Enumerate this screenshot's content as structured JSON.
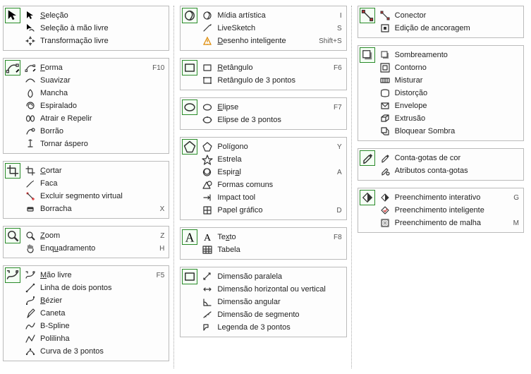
{
  "ui": {
    "colors": {
      "group_border": "#bbbbbb",
      "main_icon_border": "#2a8a2a",
      "main_icon_bg": "#f4fff4",
      "text": "#222222",
      "shortcut": "#555555",
      "divider": "#aaaaaa",
      "background": "#ffffff"
    },
    "font_size_pt": 8,
    "layout": "three-columns-dotted-dividers"
  },
  "columns": [
    {
      "groups": [
        {
          "main": "pick",
          "items": [
            {
              "icon": "pick",
              "label": "Seleção",
              "u": 0
            },
            {
              "icon": "freehand-pick",
              "label": "Seleção à mão livre"
            },
            {
              "icon": "free-transform",
              "label": "Transformação livre"
            }
          ]
        },
        {
          "main": "shape-tool",
          "items": [
            {
              "icon": "shape-tool",
              "label": "Forma",
              "u": 0,
              "shortcut": "F10"
            },
            {
              "icon": "smooth",
              "label": "Suavizar"
            },
            {
              "icon": "smudge",
              "label": "Mancha"
            },
            {
              "icon": "twirl",
              "label": "Espiralado"
            },
            {
              "icon": "attract",
              "label": "Atrair e Repelir"
            },
            {
              "icon": "smear",
              "label": "Borrão"
            },
            {
              "icon": "roughen",
              "label": "Tornar áspero"
            }
          ]
        },
        {
          "main": "crop",
          "items": [
            {
              "icon": "crop",
              "label": "Cortar",
              "u": 0
            },
            {
              "icon": "knife",
              "label": "Faca"
            },
            {
              "icon": "vseg",
              "label": "Excluir segmento virtual"
            },
            {
              "icon": "eraser",
              "label": "Borracha",
              "shortcut": "X"
            }
          ]
        },
        {
          "main": "zoom",
          "items": [
            {
              "icon": "zoom",
              "label": "Zoom",
              "u": 0,
              "shortcut": "Z"
            },
            {
              "icon": "pan",
              "label": "Enquadramento",
              "u": 3,
              "shortcut": "H"
            }
          ]
        },
        {
          "main": "freehand",
          "items": [
            {
              "icon": "freehand",
              "label": "Mão livre",
              "u": 0,
              "shortcut": "F5"
            },
            {
              "icon": "2ptline",
              "label": "Linha de dois pontos"
            },
            {
              "icon": "bezier",
              "label": "Bézier",
              "u": 0
            },
            {
              "icon": "pen",
              "label": "Caneta"
            },
            {
              "icon": "bspline",
              "label": "B-Spline"
            },
            {
              "icon": "polyline",
              "label": "Polilinha"
            },
            {
              "icon": "3ptcurve",
              "label": "Curva de 3 pontos"
            }
          ]
        }
      ]
    },
    {
      "groups": [
        {
          "main": "artistic",
          "items": [
            {
              "icon": "artistic",
              "label": "Mídia artística",
              "shortcut": "I"
            },
            {
              "icon": "livesketch",
              "label": "LiveSketch",
              "shortcut": "S"
            },
            {
              "icon": "smartdraw",
              "label": "Desenho inteligente",
              "u": 0,
              "shortcut": "Shift+S"
            }
          ]
        },
        {
          "main": "rect",
          "items": [
            {
              "icon": "rect",
              "label": "Retângulo",
              "u": 0,
              "shortcut": "F6"
            },
            {
              "icon": "3ptrect",
              "label": "Retângulo de 3 pontos"
            }
          ]
        },
        {
          "main": "ellipse",
          "items": [
            {
              "icon": "ellipse",
              "label": "Elipse",
              "u": 0,
              "shortcut": "F7"
            },
            {
              "icon": "3ptellipse",
              "label": "Elipse de 3 pontos"
            }
          ]
        },
        {
          "main": "polygon",
          "items": [
            {
              "icon": "polygon",
              "label": "Polígono",
              "u": 4,
              "shortcut": "Y"
            },
            {
              "icon": "star",
              "label": "Estrela"
            },
            {
              "icon": "spiral",
              "label": "Espiral",
              "u": 5,
              "shortcut": "A"
            },
            {
              "icon": "common",
              "label": "Formas comuns"
            },
            {
              "icon": "impact",
              "label": "Impact tool"
            },
            {
              "icon": "graphpaper",
              "label": "Papel gráfico",
              "u": 6,
              "shortcut": "D"
            }
          ]
        },
        {
          "main": "text",
          "items": [
            {
              "icon": "text",
              "label": "Texto",
              "u": 2,
              "shortcut": "F8"
            },
            {
              "icon": "table",
              "label": "Tabela"
            }
          ]
        },
        {
          "main": "dimension",
          "items": [
            {
              "icon": "dim-parallel",
              "label": "Dimensão paralela"
            },
            {
              "icon": "dim-hv",
              "label": "Dimensão horizontal ou vertical"
            },
            {
              "icon": "dim-angular",
              "label": "Dimensão angular"
            },
            {
              "icon": "dim-segment",
              "label": "Dimensão de segmento"
            },
            {
              "icon": "callout",
              "label": "Legenda de 3 pontos"
            }
          ]
        }
      ]
    },
    {
      "groups": [
        {
          "main": "connector",
          "items": [
            {
              "icon": "connector",
              "label": "Conector"
            },
            {
              "icon": "anchor-edit",
              "label": "Edição de ancoragem"
            }
          ]
        },
        {
          "main": "dropshadow",
          "items": [
            {
              "icon": "dropshadow",
              "label": "Sombreamento"
            },
            {
              "icon": "contour",
              "label": "Contorno"
            },
            {
              "icon": "blend",
              "label": "Misturar"
            },
            {
              "icon": "distort",
              "label": "Distorção"
            },
            {
              "icon": "envelope",
              "label": "Envelope"
            },
            {
              "icon": "extrude",
              "label": "Extrusão"
            },
            {
              "icon": "blockshadow",
              "label": "Bloquear Sombra"
            }
          ]
        },
        {
          "main": "eyedropper",
          "items": [
            {
              "icon": "eyedropper",
              "label": "Conta-gotas de cor"
            },
            {
              "icon": "attr-dropper",
              "label": "Atributos conta-gotas"
            }
          ]
        },
        {
          "main": "interactive-fill",
          "items": [
            {
              "icon": "interactive-fill",
              "label": "Preenchimento interativo",
              "shortcut": "G"
            },
            {
              "icon": "smart-fill",
              "label": "Preenchimento inteligente"
            },
            {
              "icon": "mesh-fill",
              "label": "Preenchimento de malha",
              "shortcut": "M"
            }
          ]
        }
      ]
    }
  ]
}
